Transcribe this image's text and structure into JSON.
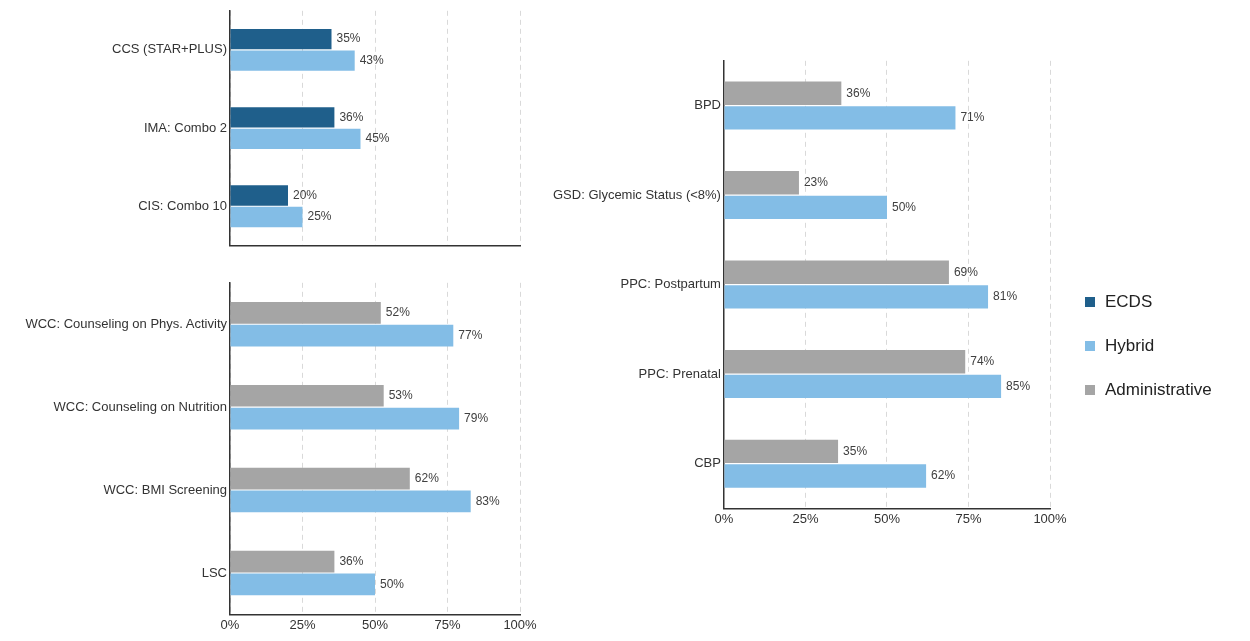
{
  "chart_data": [
    {
      "type": "bar",
      "orientation": "horizontal",
      "categories": [
        "CCS (STAR+PLUS)",
        "IMA: Combo 2",
        "CIS: Combo 10"
      ],
      "series": [
        {
          "name": "ECDS",
          "color": "#1f5f8b",
          "values": [
            35,
            36,
            20
          ],
          "value_labels": [
            "35%",
            "36%",
            "20%"
          ]
        },
        {
          "name": "Hybrid",
          "color": "#83bde6",
          "values": [
            43,
            45,
            25
          ],
          "value_labels": [
            "43%",
            "45%",
            "25%"
          ]
        }
      ],
      "xlim": [
        0,
        100
      ],
      "xticks": [
        {
          "value": 0,
          "label": null
        },
        {
          "value": 25,
          "label": null
        },
        {
          "value": 50,
          "label": null
        },
        {
          "value": 75,
          "label": null
        },
        {
          "value": 100,
          "label": null
        }
      ],
      "grid": "x",
      "legend": "right"
    },
    {
      "type": "bar",
      "orientation": "horizontal",
      "categories": [
        "WCC: Counseling on Phys. Activity",
        "WCC: Counseling on Nutrition",
        "WCC: BMI Screening",
        "LSC"
      ],
      "series": [
        {
          "color": "#a5a5a5",
          "values": [
            52,
            53,
            62,
            36
          ],
          "value_labels": [
            "52%",
            "53%",
            "62%",
            "36%"
          ]
        },
        {
          "color": "#83bde6",
          "values": [
            77,
            79,
            83,
            50
          ],
          "value_labels": [
            "77%",
            "79%",
            "83%",
            "50%"
          ]
        }
      ],
      "xlim": [
        0,
        100
      ],
      "xticks": [
        {
          "value": 0,
          "label": "0%"
        },
        {
          "value": 25,
          "label": "25%"
        },
        {
          "value": 50,
          "label": "50%"
        },
        {
          "value": 75,
          "label": "75%"
        },
        {
          "value": 100,
          "label": "100%"
        }
      ],
      "grid": "x"
    },
    {
      "type": "bar",
      "orientation": "horizontal",
      "categories": [
        "BPD",
        "GSD: Glycemic Status (<8%)",
        "PPC: Postpartum",
        "PPC: Prenatal",
        "CBP"
      ],
      "series": [
        {
          "name": "Administrative",
          "color": "#a5a5a5",
          "values": [
            36,
            23,
            69,
            74,
            35
          ],
          "value_labels": [
            "36%",
            "23%",
            "69%",
            "74%",
            "35%"
          ]
        },
        {
          "color": "#83bde6",
          "values": [
            71,
            50,
            81,
            85,
            62
          ],
          "value_labels": [
            "71%",
            "50%",
            "81%",
            "85%",
            "62%"
          ]
        }
      ],
      "xlim": [
        0,
        100
      ],
      "xticks": [
        {
          "value": 0,
          "label": "0%"
        },
        {
          "value": 25,
          "label": "25%"
        },
        {
          "value": 50,
          "label": "50%"
        },
        {
          "value": 75,
          "label": "75%"
        },
        {
          "value": 100,
          "label": "100%"
        }
      ],
      "grid": "x",
      "legend": "right"
    }
  ]
}
